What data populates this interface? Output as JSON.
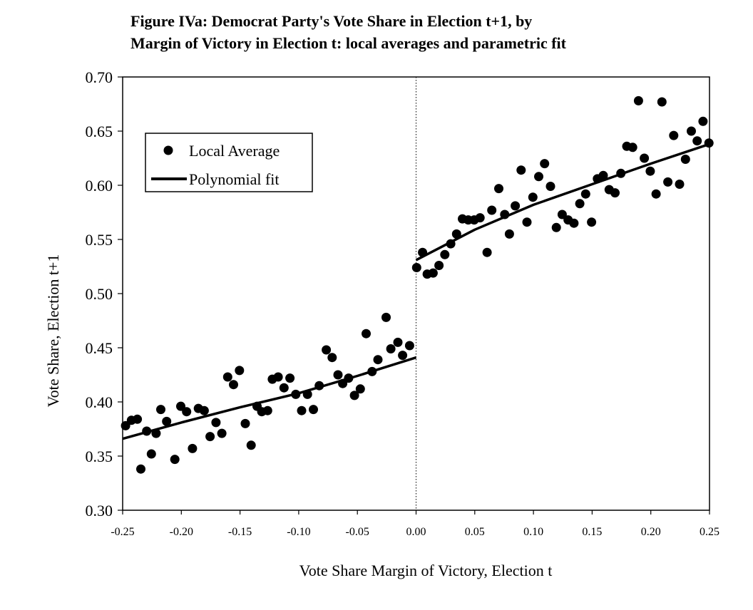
{
  "title_line1": "Figure IVa: Democrat Party's Vote Share in Election t+1, by",
  "title_line2": "Margin of Victory in Election t: local averages and parametric fit",
  "chart_data": {
    "type": "scatter",
    "xlabel": "Vote Share Margin of Victory, Election t",
    "ylabel": "Vote Share, Election t+1",
    "xlim": [
      -0.25,
      0.25
    ],
    "ylim": [
      0.3,
      0.7
    ],
    "x_ticks": [
      "-0.25",
      "-0.20",
      "-0.15",
      "-0.10",
      "-0.05",
      "0.00",
      "0.05",
      "0.10",
      "0.15",
      "0.20",
      "0.25"
    ],
    "y_ticks": [
      "0.30",
      "0.35",
      "0.40",
      "0.45",
      "0.50",
      "0.55",
      "0.60",
      "0.65",
      "0.70"
    ],
    "grid": false,
    "threshold_line": {
      "x": 0.0,
      "style": "dotted"
    },
    "legend": {
      "placement": "top-left",
      "entries": [
        {
          "label": "Local Average",
          "marker": "dot"
        },
        {
          "label": "Polynomial fit",
          "marker": "line"
        }
      ]
    },
    "series": [
      {
        "name": "Local Average",
        "kind": "points",
        "points": [
          [
            -0.2475,
            0.378
          ],
          [
            -0.2425,
            0.383
          ],
          [
            -0.2375,
            0.384
          ],
          [
            -0.2345,
            0.338
          ],
          [
            -0.2295,
            0.373
          ],
          [
            -0.2255,
            0.352
          ],
          [
            -0.2215,
            0.371
          ],
          [
            -0.2175,
            0.393
          ],
          [
            -0.2125,
            0.382
          ],
          [
            -0.2055,
            0.347
          ],
          [
            -0.2005,
            0.396
          ],
          [
            -0.1955,
            0.391
          ],
          [
            -0.1905,
            0.357
          ],
          [
            -0.1855,
            0.394
          ],
          [
            -0.1805,
            0.392
          ],
          [
            -0.1755,
            0.368
          ],
          [
            -0.1705,
            0.381
          ],
          [
            -0.1655,
            0.371
          ],
          [
            -0.1605,
            0.423
          ],
          [
            -0.1555,
            0.416
          ],
          [
            -0.1505,
            0.429
          ],
          [
            -0.1455,
            0.38
          ],
          [
            -0.1405,
            0.36
          ],
          [
            -0.1355,
            0.396
          ],
          [
            -0.1315,
            0.391
          ],
          [
            -0.1265,
            0.392
          ],
          [
            -0.1225,
            0.421
          ],
          [
            -0.1175,
            0.423
          ],
          [
            -0.1125,
            0.413
          ],
          [
            -0.1075,
            0.422
          ],
          [
            -0.1025,
            0.407
          ],
          [
            -0.0975,
            0.392
          ],
          [
            -0.0925,
            0.407
          ],
          [
            -0.0875,
            0.393
          ],
          [
            -0.0825,
            0.415
          ],
          [
            -0.0765,
            0.448
          ],
          [
            -0.0715,
            0.441
          ],
          [
            -0.0665,
            0.425
          ],
          [
            -0.0625,
            0.417
          ],
          [
            -0.0575,
            0.422
          ],
          [
            -0.0525,
            0.406
          ],
          [
            -0.0475,
            0.412
          ],
          [
            -0.0425,
            0.463
          ],
          [
            -0.0375,
            0.428
          ],
          [
            -0.0325,
            0.439
          ],
          [
            -0.0255,
            0.478
          ],
          [
            -0.0215,
            0.449
          ],
          [
            -0.0155,
            0.455
          ],
          [
            -0.0115,
            0.443
          ],
          [
            -0.0055,
            0.452
          ],
          [
            0.0005,
            0.524
          ],
          [
            0.0055,
            0.538
          ],
          [
            0.0095,
            0.518
          ],
          [
            0.0145,
            0.519
          ],
          [
            0.0195,
            0.526
          ],
          [
            0.0245,
            0.536
          ],
          [
            0.0295,
            0.546
          ],
          [
            0.0345,
            0.555
          ],
          [
            0.0395,
            0.569
          ],
          [
            0.0445,
            0.568
          ],
          [
            0.0495,
            0.568
          ],
          [
            0.0545,
            0.57
          ],
          [
            0.0605,
            0.538
          ],
          [
            0.0645,
            0.577
          ],
          [
            0.0705,
            0.597
          ],
          [
            0.0755,
            0.573
          ],
          [
            0.0795,
            0.555
          ],
          [
            0.0845,
            0.581
          ],
          [
            0.0895,
            0.614
          ],
          [
            0.0945,
            0.566
          ],
          [
            0.0995,
            0.589
          ],
          [
            0.1045,
            0.608
          ],
          [
            0.1095,
            0.62
          ],
          [
            0.1145,
            0.599
          ],
          [
            0.1195,
            0.561
          ],
          [
            0.1245,
            0.573
          ],
          [
            0.1295,
            0.568
          ],
          [
            0.1345,
            0.565
          ],
          [
            0.1395,
            0.583
          ],
          [
            0.1445,
            0.592
          ],
          [
            0.1495,
            0.566
          ],
          [
            0.1545,
            0.606
          ],
          [
            0.1595,
            0.609
          ],
          [
            0.1645,
            0.596
          ],
          [
            0.1695,
            0.593
          ],
          [
            0.1745,
            0.611
          ],
          [
            0.1795,
            0.636
          ],
          [
            0.1845,
            0.635
          ],
          [
            0.1895,
            0.678
          ],
          [
            0.1945,
            0.625
          ],
          [
            0.1995,
            0.613
          ],
          [
            0.2045,
            0.592
          ],
          [
            0.2095,
            0.677
          ],
          [
            0.2145,
            0.603
          ],
          [
            0.2195,
            0.646
          ],
          [
            0.2245,
            0.601
          ],
          [
            0.2295,
            0.624
          ],
          [
            0.2345,
            0.65
          ],
          [
            0.2395,
            0.641
          ],
          [
            0.2445,
            0.659
          ],
          [
            0.2495,
            0.639
          ]
        ]
      },
      {
        "name": "Polynomial fit",
        "kind": "line",
        "segments": [
          [
            [
              -0.25,
              0.366
            ],
            [
              -0.2,
              0.381
            ],
            [
              -0.15,
              0.395
            ],
            [
              -0.1,
              0.408
            ],
            [
              -0.05,
              0.424
            ],
            [
              0.0,
              0.441
            ]
          ],
          [
            [
              0.0,
              0.531
            ],
            [
              0.05,
              0.559
            ],
            [
              0.1,
              0.582
            ],
            [
              0.15,
              0.601
            ],
            [
              0.2,
              0.62
            ],
            [
              0.25,
              0.638
            ]
          ]
        ]
      }
    ]
  }
}
